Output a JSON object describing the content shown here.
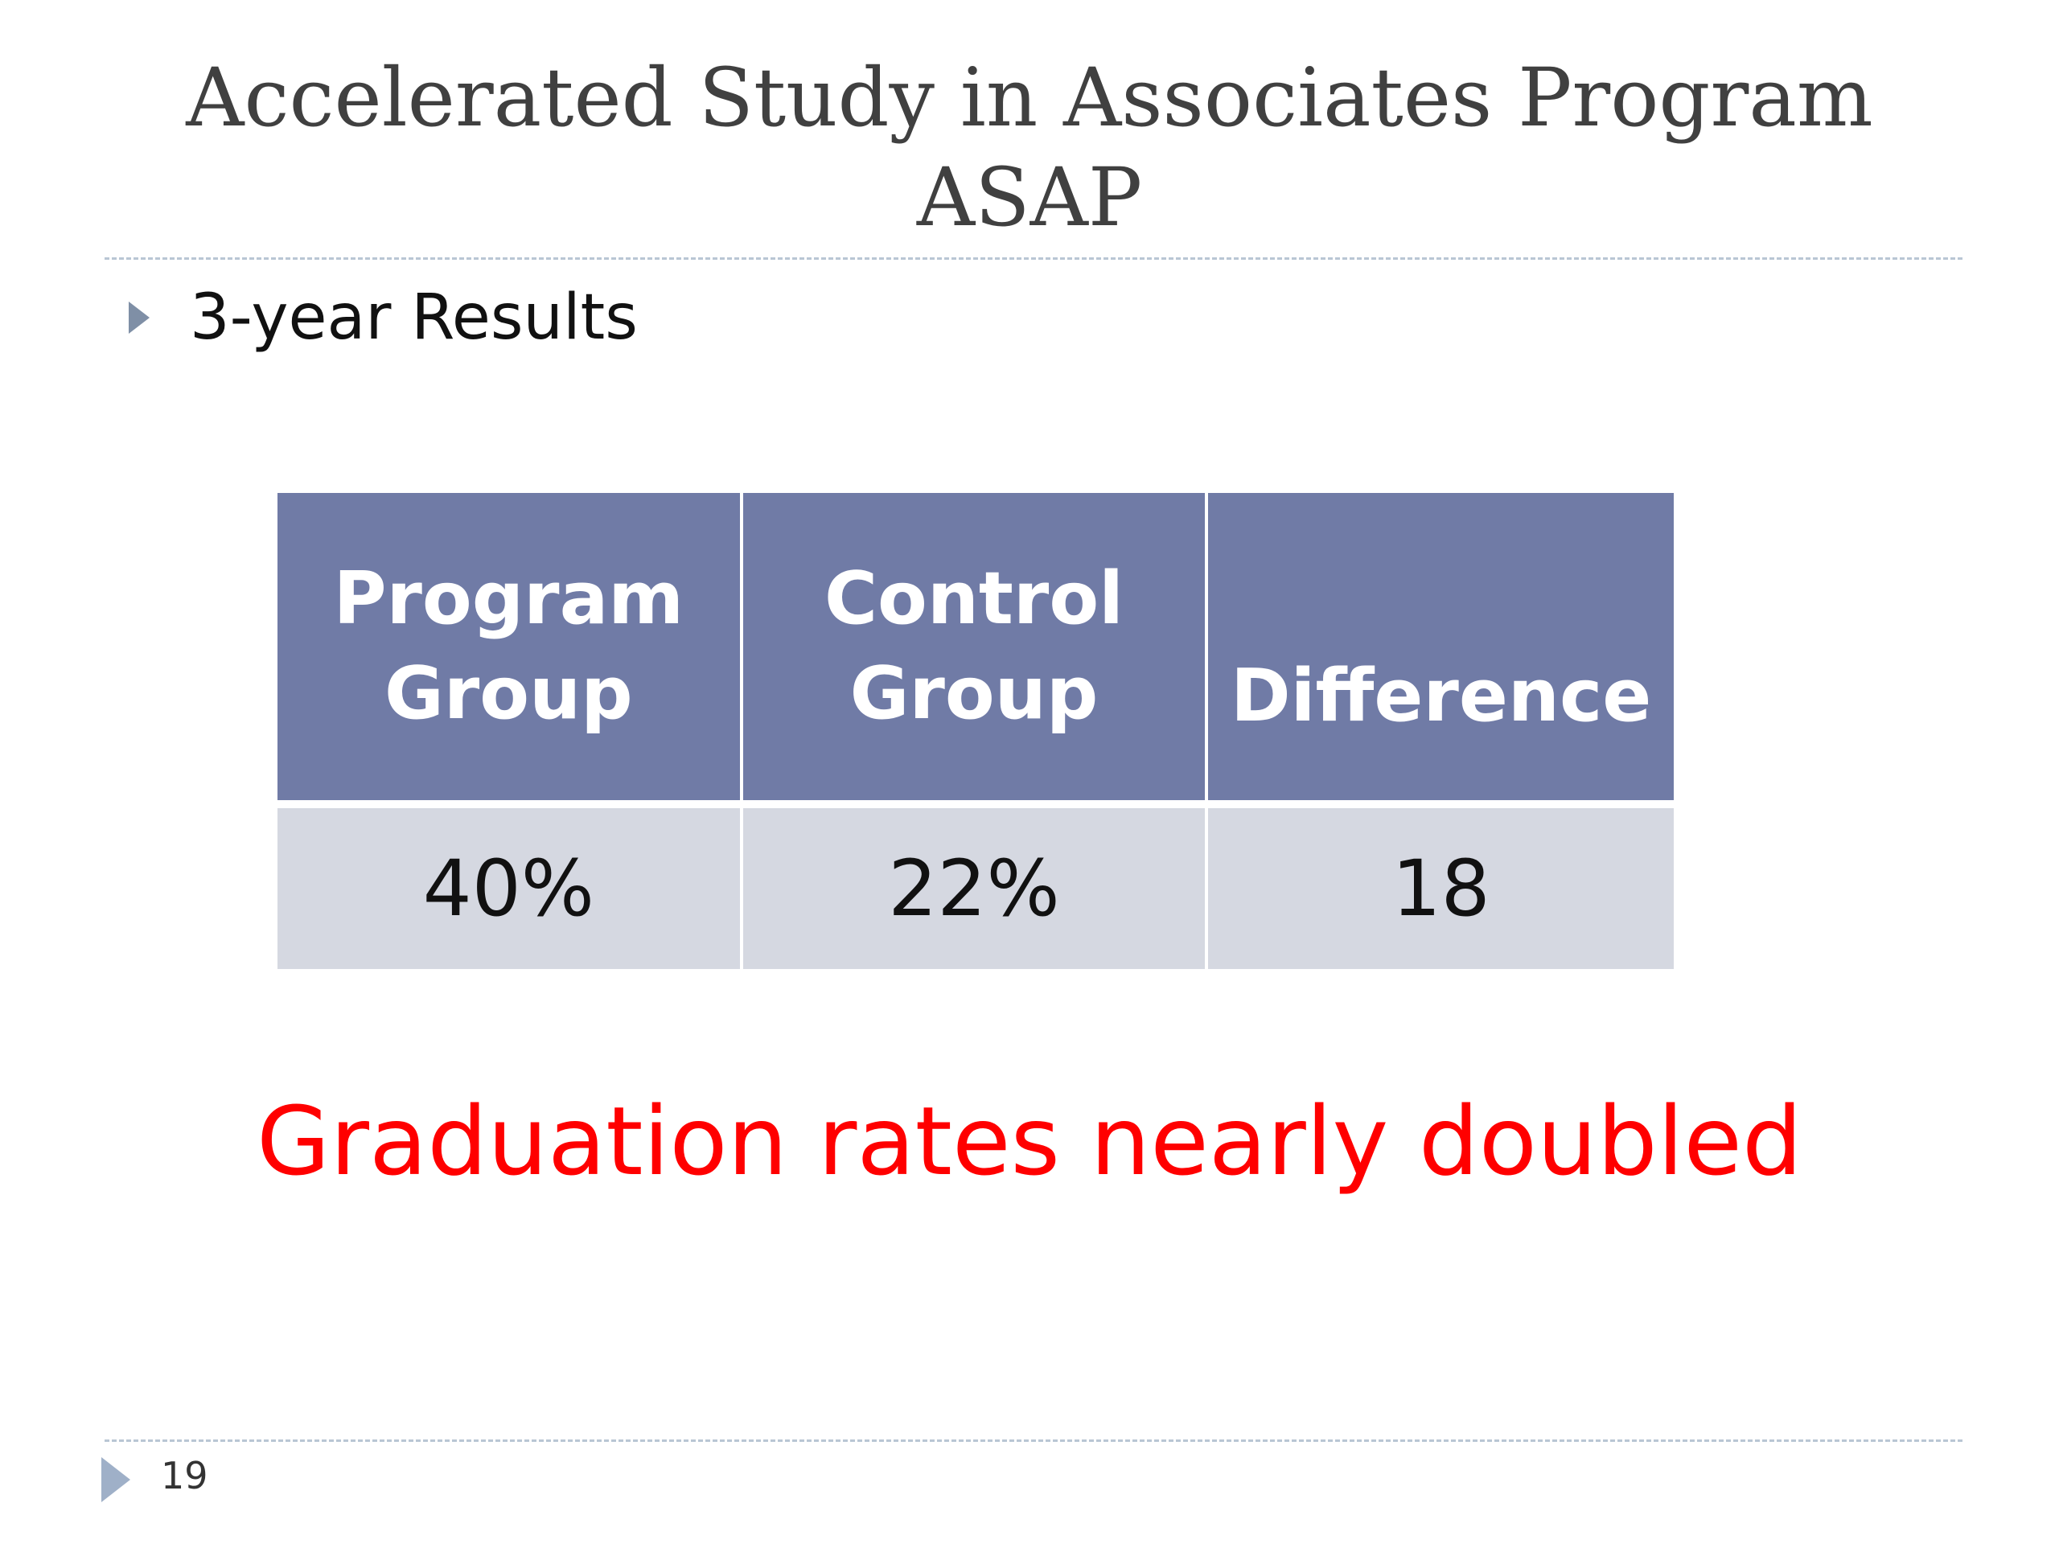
{
  "slide": {
    "title_line1": "Accelerated Study in Associates Program",
    "title_line2": "ASAP",
    "bullet": "3-year Results",
    "table": {
      "headers": [
        "Program\nGroup",
        "Control\nGroup",
        "Difference"
      ],
      "rows": [
        [
          "40%",
          "22%",
          "18"
        ]
      ]
    },
    "callout": "Graduation rates nearly doubled",
    "page_number": "19"
  },
  "colors": {
    "title": "#404040",
    "header_bg": "#707ba6",
    "header_text": "#ffffff",
    "cell_bg": "#d5d8e1",
    "callout": "#ff0000",
    "bullet_icon": "#7f8fa6",
    "rule": "#b9c6d4"
  },
  "icons": {
    "bullet": "triangle-right-icon",
    "footer": "triangle-right-icon"
  }
}
